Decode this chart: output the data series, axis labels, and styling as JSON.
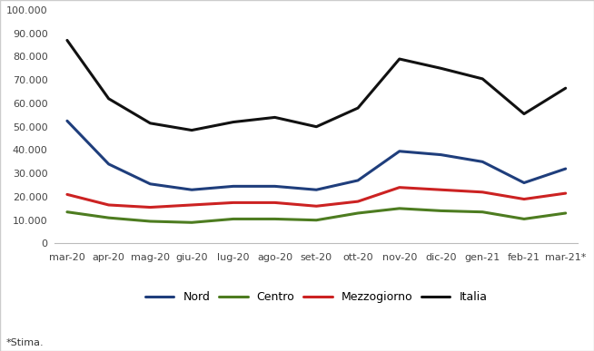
{
  "x_labels": [
    "mar-20",
    "apr-20",
    "mag-20",
    "giu-20",
    "lug-20",
    "ago-20",
    "set-20",
    "ott-20",
    "nov-20",
    "dic-20",
    "gen-21",
    "feb-21",
    "mar-21*"
  ],
  "nord": [
    52500,
    34000,
    25500,
    23000,
    24500,
    24500,
    23000,
    27000,
    39500,
    38000,
    35000,
    26000,
    32000
  ],
  "centro": [
    13500,
    11000,
    9500,
    9000,
    10500,
    10500,
    10000,
    13000,
    15000,
    14000,
    13500,
    10500,
    13000
  ],
  "mezzogiorno": [
    21000,
    16500,
    15500,
    16500,
    17500,
    17500,
    16000,
    18000,
    24000,
    23000,
    22000,
    19000,
    21500
  ],
  "italia": [
    87000,
    62000,
    51500,
    48500,
    52000,
    54000,
    50000,
    58000,
    79000,
    75000,
    70500,
    55500,
    66500
  ],
  "colors": {
    "nord": "#1F3E7C",
    "centro": "#4D7C20",
    "mezzogiorno": "#CC2222",
    "italia": "#111111"
  },
  "ylim": [
    0,
    100000
  ],
  "yticks": [
    0,
    10000,
    20000,
    30000,
    40000,
    50000,
    60000,
    70000,
    80000,
    90000,
    100000
  ],
  "ytick_labels": [
    "0",
    "10.000",
    "20.000",
    "30.000",
    "40.000",
    "50.000",
    "60.000",
    "70.000",
    "80.000",
    "90.000",
    "100.000"
  ],
  "legend_labels": [
    "Nord",
    "Centro",
    "Mezzogiorno",
    "Italia"
  ],
  "footnote": "*Stima.",
  "background_color": "#ffffff",
  "line_width": 2.2,
  "border_color": "#cccccc"
}
